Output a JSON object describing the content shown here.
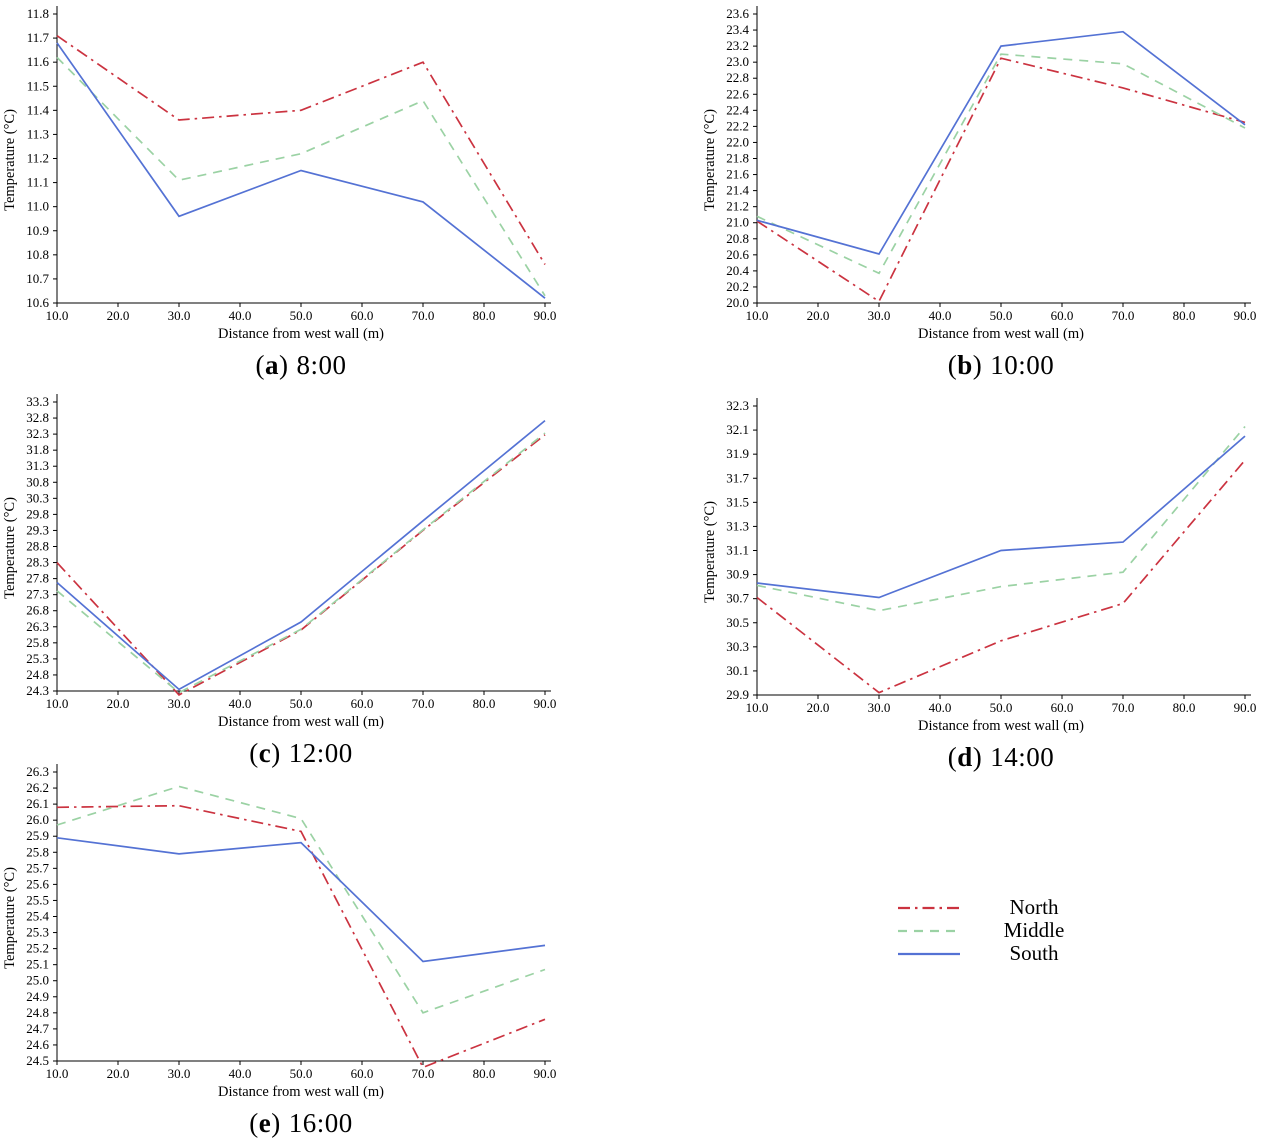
{
  "figure": {
    "background": "#ffffff",
    "axis_color": "#000000",
    "paren_open": "(",
    "paren_close": ")"
  },
  "legend": {
    "position": "right-of-chart-e",
    "entries": [
      {
        "name": "North",
        "color": "#cb3340",
        "dash": "12 5 2.5 5"
      },
      {
        "name": "Middle",
        "color": "#9bd2a4",
        "dash": "9 7"
      },
      {
        "name": "South",
        "color": "#5472d4",
        "dash": ""
      }
    ]
  },
  "chart_data": [
    {
      "type": "line",
      "caption_letter": "a",
      "caption_time": "8:00",
      "xlabel": "Distance from west wall (m)",
      "ylabel": "Temperature (°C)",
      "xticks": [
        10,
        20,
        30,
        40,
        50,
        60,
        70,
        80,
        90
      ],
      "x": [
        10,
        30,
        50,
        70,
        90
      ],
      "ylim": [
        10.6,
        11.8
      ],
      "ystep": 0.1,
      "grid": false,
      "series": [
        {
          "name": "North",
          "values": [
            11.71,
            11.36,
            11.4,
            11.6,
            10.76
          ]
        },
        {
          "name": "Middle",
          "values": [
            11.62,
            11.11,
            11.22,
            11.44,
            10.63
          ]
        },
        {
          "name": "South",
          "values": [
            11.68,
            10.96,
            11.15,
            11.02,
            10.62
          ]
        }
      ]
    },
    {
      "type": "line",
      "caption_letter": "b",
      "caption_time": "10:00",
      "xlabel": "Distance from west wall (m)",
      "ylabel": "Temperature (°C)",
      "xticks": [
        10,
        20,
        30,
        40,
        50,
        60,
        70,
        80,
        90
      ],
      "x": [
        10,
        30,
        50,
        70,
        90
      ],
      "ylim": [
        20.0,
        23.6
      ],
      "ystep": 0.2,
      "grid": false,
      "series": [
        {
          "name": "North",
          "values": [
            21.02,
            20.02,
            23.05,
            22.68,
            22.25
          ]
        },
        {
          "name": "Middle",
          "values": [
            21.08,
            20.37,
            23.1,
            22.98,
            22.18
          ]
        },
        {
          "name": "South",
          "values": [
            21.03,
            20.61,
            23.2,
            23.38,
            22.22
          ]
        }
      ]
    },
    {
      "type": "line",
      "caption_letter": "c",
      "caption_time": "12:00",
      "xlabel": "Distance from west wall (m)",
      "ylabel": "Temperature (°C)",
      "xticks": [
        10,
        20,
        30,
        40,
        50,
        60,
        70,
        80,
        90
      ],
      "x": [
        10,
        30,
        50,
        70,
        90
      ],
      "ylim": [
        24.3,
        33.3
      ],
      "ystep": 0.5,
      "grid": false,
      "series": [
        {
          "name": "North",
          "values": [
            28.3,
            24.18,
            26.2,
            29.3,
            32.28
          ]
        },
        {
          "name": "Middle",
          "values": [
            27.42,
            24.25,
            26.22,
            29.32,
            32.33
          ]
        },
        {
          "name": "South",
          "values": [
            27.68,
            24.35,
            26.45,
            29.6,
            32.72
          ]
        }
      ]
    },
    {
      "type": "line",
      "caption_letter": "d",
      "caption_time": "14:00",
      "xlabel": "Distance from west wall (m)",
      "ylabel": "Temperature (°C)",
      "xticks": [
        10,
        20,
        30,
        40,
        50,
        60,
        70,
        80,
        90
      ],
      "x": [
        10,
        30,
        50,
        70,
        90
      ],
      "ylim": [
        29.9,
        32.3
      ],
      "ystep": 0.2,
      "grid": false,
      "series": [
        {
          "name": "North",
          "values": [
            30.71,
            29.92,
            30.35,
            30.66,
            31.85
          ]
        },
        {
          "name": "Middle",
          "values": [
            30.81,
            30.6,
            30.8,
            30.92,
            32.13
          ]
        },
        {
          "name": "South",
          "values": [
            30.83,
            30.71,
            31.1,
            31.17,
            32.05
          ]
        }
      ]
    },
    {
      "type": "line",
      "caption_letter": "e",
      "caption_time": "16:00",
      "xlabel": "Distance from west wall (m)",
      "ylabel": "Temperature (°C)",
      "xticks": [
        10,
        20,
        30,
        40,
        50,
        60,
        70,
        80,
        90
      ],
      "x": [
        10,
        30,
        50,
        70,
        90
      ],
      "ylim": [
        24.5,
        26.3
      ],
      "ystep": 0.1,
      "grid": false,
      "series": [
        {
          "name": "North",
          "values": [
            26.08,
            26.09,
            25.93,
            24.46,
            24.76
          ]
        },
        {
          "name": "Middle",
          "values": [
            25.97,
            26.21,
            26.01,
            24.8,
            25.07
          ]
        },
        {
          "name": "South",
          "values": [
            25.89,
            25.79,
            25.86,
            25.12,
            25.22
          ]
        }
      ]
    }
  ]
}
